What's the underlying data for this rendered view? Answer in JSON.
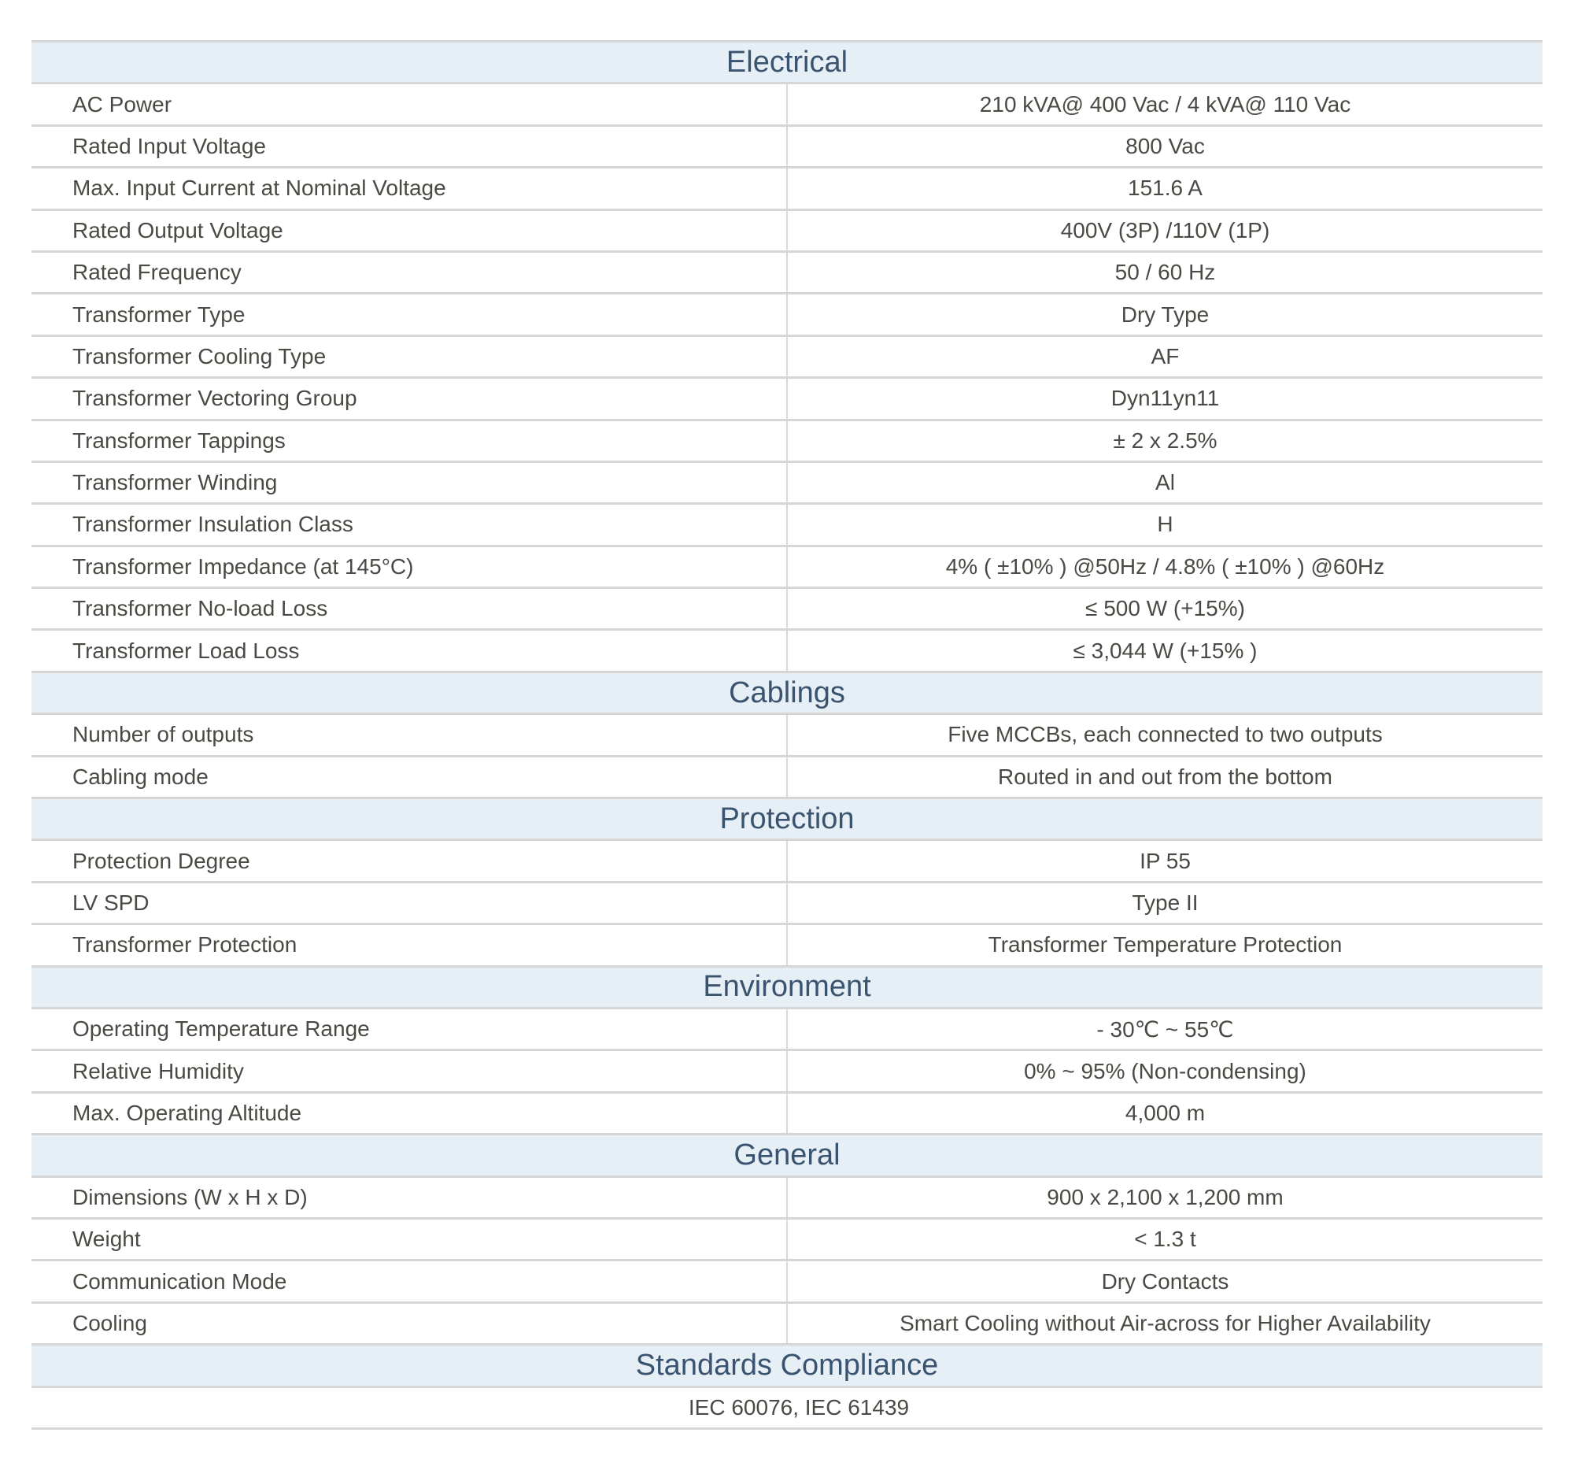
{
  "sections": [
    {
      "title": "Electrical",
      "rows": [
        [
          "AC Power",
          "210 kVA@ 400 Vac / 4 kVA@ 110 Vac"
        ],
        [
          "Rated Input Voltage",
          "800 Vac"
        ],
        [
          "Max. Input Current at Nominal Voltage",
          "151.6 A"
        ],
        [
          "Rated Output Voltage",
          "400V (3P) /110V (1P)"
        ],
        [
          "Rated Frequency",
          "50 / 60 Hz"
        ],
        [
          "Transformer Type",
          "Dry Type"
        ],
        [
          "Transformer Cooling Type",
          "AF"
        ],
        [
          "Transformer Vectoring Group",
          "Dyn11yn11"
        ],
        [
          "Transformer Tappings",
          "± 2 x 2.5%"
        ],
        [
          "Transformer Winding",
          "Al"
        ],
        [
          "Transformer Insulation Class",
          "H"
        ],
        [
          "Transformer Impedance (at 145°C)",
          "4% ( ±10% ) @50Hz / 4.8% ( ±10% ) @60Hz"
        ],
        [
          "Transformer No-load Loss",
          "≤ 500 W (+15%)"
        ],
        [
          "Transformer Load Loss",
          "≤ 3,044 W (+15% )"
        ]
      ]
    },
    {
      "title": "Cablings",
      "rows": [
        [
          "Number of outputs",
          "Five MCCBs, each connected to two outputs"
        ],
        [
          "Cabling mode",
          "Routed in and out from the bottom"
        ]
      ]
    },
    {
      "title": "Protection",
      "rows": [
        [
          "Protection Degree",
          "IP 55"
        ],
        [
          "LV SPD",
          "Type II"
        ],
        [
          "Transformer Protection",
          "Transformer Temperature Protection"
        ]
      ]
    },
    {
      "title": "Environment",
      "rows": [
        [
          "Operating Temperature Range",
          "- 30℃ ~ 55℃"
        ],
        [
          "Relative Humidity",
          "0% ~ 95% (Non-condensing)"
        ],
        [
          "Max. Operating Altitude",
          "4,000 m"
        ]
      ]
    },
    {
      "title": "General",
      "rows": [
        [
          "Dimensions (W x H x D)",
          "900 x 2,100 x 1,200 mm"
        ],
        [
          "Weight",
          "< 1.3 t"
        ],
        [
          "Communication Mode",
          "Dry Contacts"
        ],
        [
          "Cooling",
          "Smart Cooling without Air-across for Higher Availability"
        ]
      ]
    },
    {
      "title": "Standards Compliance",
      "full": "IEC 60076, IEC 61439"
    }
  ]
}
